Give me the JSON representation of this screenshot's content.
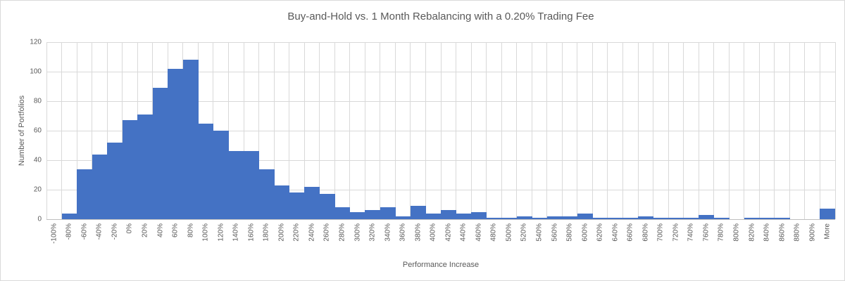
{
  "chart_data": {
    "type": "bar",
    "title": "Buy-and-Hold vs. 1 Month Rebalancing with a 0.20% Trading Fee",
    "xlabel": "Performance Increase",
    "ylabel": "Number of Portfolios",
    "categories": [
      "-100%",
      "-80%",
      "-60%",
      "-40%",
      "-20%",
      "0%",
      "20%",
      "40%",
      "60%",
      "80%",
      "100%",
      "120%",
      "140%",
      "160%",
      "180%",
      "200%",
      "220%",
      "240%",
      "260%",
      "280%",
      "300%",
      "320%",
      "340%",
      "360%",
      "380%",
      "400%",
      "420%",
      "440%",
      "460%",
      "480%",
      "500%",
      "520%",
      "540%",
      "560%",
      "580%",
      "600%",
      "620%",
      "640%",
      "660%",
      "680%",
      "700%",
      "720%",
      "740%",
      "760%",
      "780%",
      "800%",
      "820%",
      "840%",
      "860%",
      "880%",
      "900%",
      "More"
    ],
    "values": [
      0,
      4,
      34,
      44,
      52,
      67,
      71,
      89,
      102,
      108,
      65,
      60,
      46,
      46,
      34,
      23,
      18,
      22,
      17,
      8,
      5,
      6,
      8,
      2,
      9,
      4,
      6,
      4,
      5,
      1,
      1,
      2,
      1,
      2,
      2,
      4,
      1,
      1,
      1,
      2,
      1,
      1,
      1,
      3,
      1,
      0,
      1,
      1,
      1,
      0,
      0,
      7
    ],
    "yticks": [
      0,
      20,
      40,
      60,
      80,
      100,
      120
    ],
    "ylim": [
      0,
      120
    ],
    "grid": true,
    "legend": "none",
    "bar_color": "#4472C4",
    "gridline_color": "#D9D9D9",
    "axis_line_color": "#BFBFBF",
    "text_color": "#595959"
  }
}
